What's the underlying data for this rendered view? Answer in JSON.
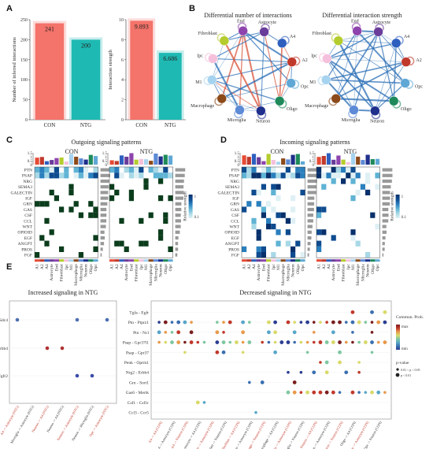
{
  "panels": {
    "a": "A",
    "b": "B",
    "c": "C",
    "d": "D",
    "e": "E"
  },
  "colors": {
    "CON": "#f4736a",
    "NTG": "#1fb9b3",
    "A1": "#e64b35",
    "A2": "#c0392b",
    "Astrocyte": "#6a3d9a",
    "End": "#8e44ad",
    "Fibroblast": "#b5cc2e",
    "Ipc": "#f5c0dc",
    "M1": "#a6d3ef",
    "Macrophage": "#8c4a1a",
    "Microglia": "#5c8ad6",
    "Neuron": "#1f2f8c",
    "Oligo": "#1e8a5a",
    "Opc": "#5fa8d6",
    "A4": "#2e5fbf"
  },
  "chart_data": [
    {
      "type": "bar",
      "categories": [
        "CON",
        "NTG"
      ],
      "values": [
        241,
        200
      ],
      "ylabel": "Number of inferred interactions",
      "ylim": [
        0,
        250
      ],
      "yticks": [
        "0",
        "50",
        "100",
        "150",
        "200",
        "250"
      ]
    },
    {
      "type": "bar",
      "categories": [
        "CON",
        "NTG"
      ],
      "values": [
        9.893,
        6.686
      ],
      "ylabel": "Interaction strength",
      "ylim": [
        0,
        10
      ],
      "yticks": [
        "0",
        "2",
        "4",
        "6",
        "8",
        "10"
      ]
    },
    {
      "type": "network",
      "title": "Differential number of interactions",
      "nodes": [
        "End",
        "Astrocyte",
        "A4",
        "A2",
        "Opc",
        "Oligo",
        "Neuron",
        "Microglia",
        "Macrophage",
        "M1",
        "Ipc",
        "Fibroblast"
      ]
    },
    {
      "type": "network",
      "title": "Differential interaction strength",
      "nodes": [
        "End",
        "Astrocyte",
        "A4",
        "A2",
        "Opc",
        "Oligo",
        "Neuron",
        "Microglia",
        "Macrophage",
        "M1",
        "Ipc",
        "Fibroblast"
      ]
    },
    {
      "type": "heatmap",
      "title": "Outgoing signaling patterns",
      "groups": [
        "CON",
        "NTG"
      ],
      "rows": [
        "PTN",
        "PSAP",
        "NRG",
        "SEMA3",
        "GALECTIN",
        "IGF",
        "GRN",
        "GAS",
        "CSF",
        "CCL",
        "WNT",
        "OPIOID",
        "EGF",
        "ANGPT",
        "PROS",
        "FGF"
      ],
      "columns": [
        "A1",
        "A2",
        "A4",
        "Astrocyte",
        "End",
        "Fibroblast",
        "Ipc",
        "M1",
        "Macrophage",
        "Microglia",
        "Neuron",
        "Oligo",
        "Opc"
      ],
      "legend": {
        "title": "Relative strength",
        "max": "1",
        "min": "0.1"
      }
    },
    {
      "type": "heatmap",
      "title": "Incoming signaling patterns",
      "groups": [
        "CON",
        "NTG"
      ],
      "rows": [
        "PTN",
        "PSAP",
        "NRG",
        "SEMA3",
        "GALECTIN",
        "IGF",
        "GRN",
        "GAS",
        "CSF",
        "CCL",
        "WNT",
        "OPIOID",
        "EGF",
        "ANGPT",
        "PROS",
        "FGF"
      ],
      "columns": [
        "A1",
        "A2",
        "A4",
        "Astrocyte",
        "End",
        "Fibroblast",
        "Ipc",
        "M1",
        "Macrophage",
        "Microglia",
        "Neuron",
        "Oligo",
        "Opc"
      ],
      "legend": {
        "title": "Relative strength",
        "max": "1",
        "min": "0.1"
      }
    },
    {
      "type": "scatter",
      "title": "Increased signaling in NTG",
      "rows": [
        "Ptn - Sdc4",
        "Nrg2 - Erbb4",
        "Fgf1 - Fgfr2"
      ],
      "columns": [
        "A4 -> Astrocyte (NTG)",
        "Microglia -> Astrocyte (NTG)",
        "Neuron -> A4 (NTG)",
        "Neuron -> A4 (NTG)",
        "Neuron -> Astrocyte (NTG)",
        "Neuron -> Microglia (NTG)",
        "Opc -> Astrocyte (NTG)"
      ]
    },
    {
      "type": "scatter",
      "title": "Decreased signaling in NTG",
      "rows": [
        "Tgfa - Egfr",
        "Ptn - Ptprz1",
        "Ptn - Ncl",
        "Psap - Gpr37l1",
        "Psap - Gpr37",
        "Penk - Oprm1",
        "Nrg2 - Erbb4",
        "Grn - Sort1",
        "Gas6 - Mertk",
        "Csf1 - Csf1r",
        "Ccl3 - Ccr5"
      ],
      "legend": {
        "color_title": "Commun. Prob.",
        "max": "max",
        "min": "min",
        "size_title": "p-value",
        "size_items": [
          "0.01 < p < 0.05",
          "p < 0.01"
        ]
      }
    }
  ]
}
